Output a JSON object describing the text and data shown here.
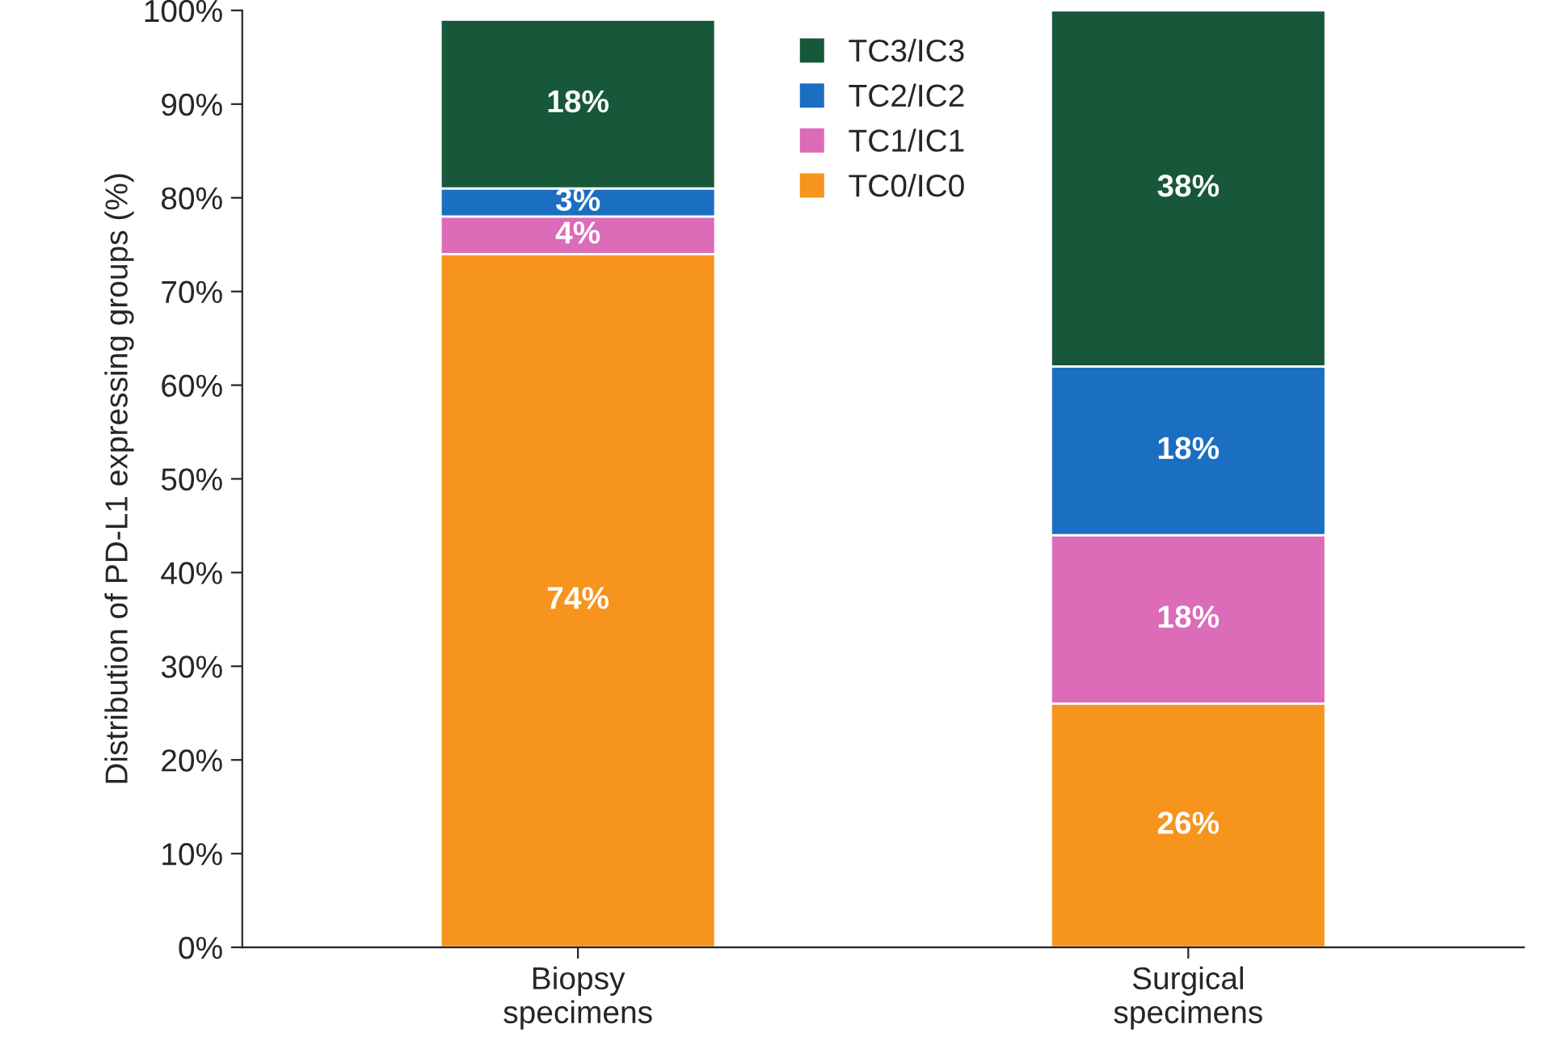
{
  "chart_data": {
    "type": "bar",
    "stacked": true,
    "ylabel": "Distribution of PD-L1 expressing groups (%)",
    "categories": [
      "Biopsy\nspecimens",
      "Surgical\nspecimens"
    ],
    "series": [
      {
        "name": "TC0/IC0",
        "color": "#f7941d",
        "values": [
          74,
          26
        ],
        "value_labels": [
          "74%",
          "26%"
        ]
      },
      {
        "name": "TC1/IC1",
        "color": "#dc6bb8",
        "values": [
          4,
          18
        ],
        "value_labels": [
          "4%",
          "18%"
        ]
      },
      {
        "name": "TC2/IC2",
        "color": "#1b6fc2",
        "values": [
          3,
          18
        ],
        "value_labels": [
          "3%",
          "18%"
        ]
      },
      {
        "name": "TC3/IC3",
        "color": "#17573a",
        "values": [
          18,
          38
        ],
        "value_labels": [
          "18%",
          "38%"
        ]
      }
    ],
    "ylim": [
      0,
      100
    ],
    "yticks": [
      {
        "value": 0,
        "label": "0%"
      },
      {
        "value": 10,
        "label": "10%"
      },
      {
        "value": 20,
        "label": "20%"
      },
      {
        "value": 30,
        "label": "30%"
      },
      {
        "value": 40,
        "label": "40%"
      },
      {
        "value": 50,
        "label": "50%"
      },
      {
        "value": 60,
        "label": "60%"
      },
      {
        "value": 70,
        "label": "70%"
      },
      {
        "value": 80,
        "label": "80%"
      },
      {
        "value": 90,
        "label": "90%"
      },
      {
        "value": 100,
        "label": "100%"
      }
    ],
    "grid": false,
    "legend": "top"
  }
}
